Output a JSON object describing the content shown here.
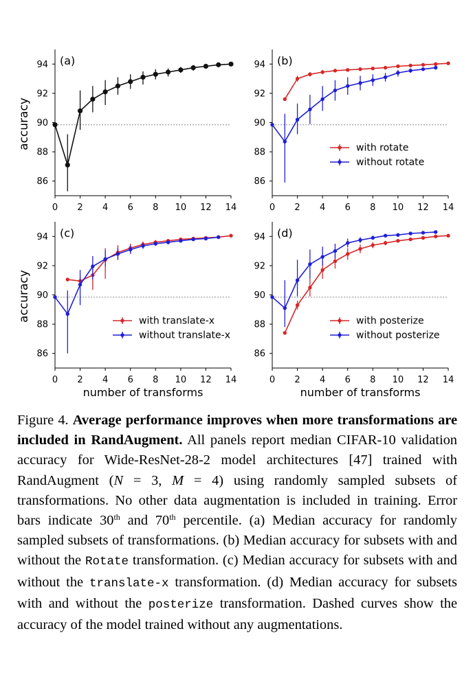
{
  "chart_data": [
    {
      "type": "line",
      "panel_label": "(a)",
      "xlabel": "",
      "ylabel": "accuracy",
      "xlim": [
        0,
        14
      ],
      "ylim": [
        85,
        95
      ],
      "xticks": [
        "0",
        "2",
        "4",
        "6",
        "8",
        "10",
        "12",
        "14"
      ],
      "yticks": [
        "86",
        "88",
        "90",
        "92",
        "94"
      ],
      "baseline": 89.85,
      "legend_position": "",
      "series": [
        {
          "name": "",
          "color": "#111111",
          "x": [
            0,
            1,
            2,
            3,
            4,
            5,
            6,
            7,
            8,
            9,
            10,
            11,
            12,
            13,
            14
          ],
          "y": [
            89.85,
            87.1,
            90.8,
            91.6,
            92.1,
            92.5,
            92.8,
            93.1,
            93.3,
            93.45,
            93.6,
            93.75,
            93.85,
            93.95,
            94.0
          ],
          "err_low": [
            0,
            1.8,
            1.3,
            0.9,
            0.9,
            0.6,
            0.5,
            0.5,
            0.35,
            0.3,
            0.2,
            0.2,
            0.1,
            0.1,
            0
          ],
          "err_high": [
            0,
            2.1,
            1.4,
            0.9,
            0.8,
            0.6,
            0.5,
            0.4,
            0.35,
            0.25,
            0.2,
            0.15,
            0.1,
            0.1,
            0
          ]
        }
      ]
    },
    {
      "type": "line",
      "panel_label": "(b)",
      "xlabel": "",
      "ylabel": "",
      "xlim": [
        0,
        14
      ],
      "ylim": [
        85,
        95
      ],
      "xticks": [
        "0",
        "2",
        "4",
        "6",
        "8",
        "10",
        "12",
        "14"
      ],
      "yticks": [
        "86",
        "88",
        "90",
        "92",
        "94"
      ],
      "baseline": 89.85,
      "legend_position": "center-right",
      "series": [
        {
          "name": "with rotate",
          "color": "#d62728",
          "x": [
            1,
            2,
            3,
            4,
            5,
            6,
            7,
            8,
            9,
            10,
            11,
            12,
            13,
            14
          ],
          "y": [
            91.6,
            93.0,
            93.3,
            93.45,
            93.55,
            93.6,
            93.65,
            93.7,
            93.75,
            93.85,
            93.9,
            93.95,
            94.0,
            94.05
          ],
          "err_low": [
            0,
            0.2,
            0.15,
            0.15,
            0.1,
            0.1,
            0.1,
            0.1,
            0.1,
            0.1,
            0.05,
            0.05,
            0.05,
            0
          ],
          "err_high": [
            0,
            0.2,
            0.15,
            0.15,
            0.1,
            0.1,
            0.1,
            0.1,
            0.1,
            0.1,
            0.05,
            0.05,
            0.05,
            0
          ]
        },
        {
          "name": "without rotate",
          "color": "#1f1fd6",
          "x": [
            0,
            1,
            2,
            3,
            4,
            5,
            6,
            7,
            8,
            9,
            10,
            11,
            12,
            13
          ],
          "y": [
            89.85,
            88.7,
            90.2,
            90.9,
            91.6,
            92.2,
            92.5,
            92.7,
            92.9,
            93.1,
            93.4,
            93.55,
            93.65,
            93.75
          ],
          "err_low": [
            0,
            2.8,
            1.0,
            1.0,
            0.8,
            0.7,
            0.6,
            0.5,
            0.4,
            0.3,
            0.25,
            0.15,
            0.1,
            0.1
          ],
          "err_high": [
            0,
            1.9,
            1.1,
            1.0,
            0.9,
            0.7,
            0.6,
            0.5,
            0.4,
            0.3,
            0.2,
            0.15,
            0.1,
            0.1
          ]
        }
      ]
    },
    {
      "type": "line",
      "panel_label": "(c)",
      "xlabel": "number of transforms",
      "ylabel": "accuracy",
      "xlim": [
        0,
        14
      ],
      "ylim": [
        85,
        95
      ],
      "xticks": [
        "0",
        "2",
        "4",
        "6",
        "8",
        "10",
        "12",
        "14"
      ],
      "yticks": [
        "86",
        "88",
        "90",
        "92",
        "94"
      ],
      "baseline": 89.85,
      "legend_position": "center-right",
      "series": [
        {
          "name": "with translate-x",
          "color": "#d62728",
          "x": [
            1,
            2,
            3,
            4,
            5,
            6,
            7,
            8,
            9,
            10,
            11,
            12,
            13,
            14
          ],
          "y": [
            91.05,
            90.95,
            91.35,
            92.4,
            92.9,
            93.2,
            93.45,
            93.6,
            93.7,
            93.8,
            93.85,
            93.9,
            93.95,
            94.05
          ],
          "err_low": [
            0,
            0.3,
            1.0,
            1.3,
            0.5,
            0.3,
            0.2,
            0.15,
            0.1,
            0.1,
            0.1,
            0.05,
            0.05,
            0
          ],
          "err_high": [
            0,
            0.3,
            0.8,
            0.8,
            0.5,
            0.3,
            0.2,
            0.15,
            0.1,
            0.1,
            0.1,
            0.05,
            0.05,
            0
          ]
        },
        {
          "name": "without translate-x",
          "color": "#1f1fd6",
          "x": [
            0,
            1,
            2,
            3,
            4,
            5,
            6,
            7,
            8,
            9,
            10,
            11,
            12,
            13
          ],
          "y": [
            89.85,
            88.7,
            90.7,
            91.95,
            92.45,
            92.8,
            93.1,
            93.35,
            93.5,
            93.6,
            93.7,
            93.8,
            93.85,
            93.95
          ],
          "err_low": [
            0,
            2.7,
            1.4,
            0.9,
            0.5,
            0.4,
            0.3,
            0.2,
            0.15,
            0.15,
            0.1,
            0.1,
            0.05,
            0
          ],
          "err_high": [
            0,
            1.6,
            1.0,
            0.7,
            0.6,
            0.4,
            0.3,
            0.2,
            0.15,
            0.1,
            0.1,
            0.1,
            0.05,
            0
          ]
        }
      ]
    },
    {
      "type": "line",
      "panel_label": "(d)",
      "xlabel": "number of transforms",
      "ylabel": "",
      "xlim": [
        0,
        14
      ],
      "ylim": [
        85,
        95
      ],
      "xticks": [
        "0",
        "2",
        "4",
        "6",
        "8",
        "10",
        "12",
        "14"
      ],
      "yticks": [
        "86",
        "88",
        "90",
        "92",
        "94"
      ],
      "baseline": 89.85,
      "legend_position": "center-right",
      "series": [
        {
          "name": "with posterize",
          "color": "#d62728",
          "x": [
            1,
            2,
            3,
            4,
            5,
            6,
            7,
            8,
            9,
            10,
            11,
            12,
            13,
            14
          ],
          "y": [
            87.4,
            89.3,
            90.5,
            91.7,
            92.3,
            92.8,
            93.15,
            93.4,
            93.55,
            93.7,
            93.8,
            93.9,
            94.0,
            94.05
          ],
          "err_low": [
            0,
            0.3,
            0.6,
            0.6,
            0.5,
            0.4,
            0.3,
            0.2,
            0.15,
            0.1,
            0.1,
            0.05,
            0.05,
            0
          ],
          "err_high": [
            0,
            0.3,
            0.6,
            0.6,
            0.5,
            0.4,
            0.3,
            0.2,
            0.15,
            0.1,
            0.1,
            0.05,
            0.05,
            0
          ]
        },
        {
          "name": "without posterize",
          "color": "#1f1fd6",
          "x": [
            0,
            1,
            2,
            3,
            4,
            5,
            6,
            7,
            8,
            9,
            10,
            11,
            12,
            13
          ],
          "y": [
            89.85,
            89.1,
            91.0,
            92.1,
            92.6,
            93.0,
            93.55,
            93.75,
            93.9,
            94.05,
            94.1,
            94.2,
            94.25,
            94.3
          ],
          "err_low": [
            0,
            1.3,
            1.1,
            1.0,
            0.6,
            0.5,
            0.3,
            0.2,
            0.1,
            0.1,
            0.1,
            0.05,
            0.05,
            0
          ],
          "err_high": [
            0,
            1.9,
            1.4,
            1.0,
            0.7,
            0.5,
            0.3,
            0.2,
            0.15,
            0.1,
            0.1,
            0.05,
            0.05,
            0
          ]
        }
      ]
    }
  ],
  "caption": {
    "prefix": "Figure 4. ",
    "bold": "Average performance improves when more transformations are included in RandAugment.",
    "s1": " All panels report median CIFAR-10 validation accuracy for Wide-ResNet-28-2 model architectures [47] trained with RandAugment (",
    "eq_n": "N",
    "eq_mid": " = 3, ",
    "eq_m": "M",
    "eq_end": " = 4)",
    "s2": " using randomly sampled subsets of transformations. No other data augmentation is included in training. Error bars indicate 30",
    "sup1": "th",
    "s3": " and 70",
    "sup2": "th",
    "s4": " percentile. (a) Median accuracy for randomly sampled subsets of transformations. (b) Median accuracy for subsets with and without the ",
    "code1": "Rotate",
    "s5": " transformation. (c) Median accuracy for subsets with and without the ",
    "code2": "translate-x",
    "s6": " transformation. (d) Median accuracy for subsets with and without the ",
    "code3": "posterize",
    "s7": " transformation. Dashed curves show the accuracy of the model trained without any augmentations."
  }
}
